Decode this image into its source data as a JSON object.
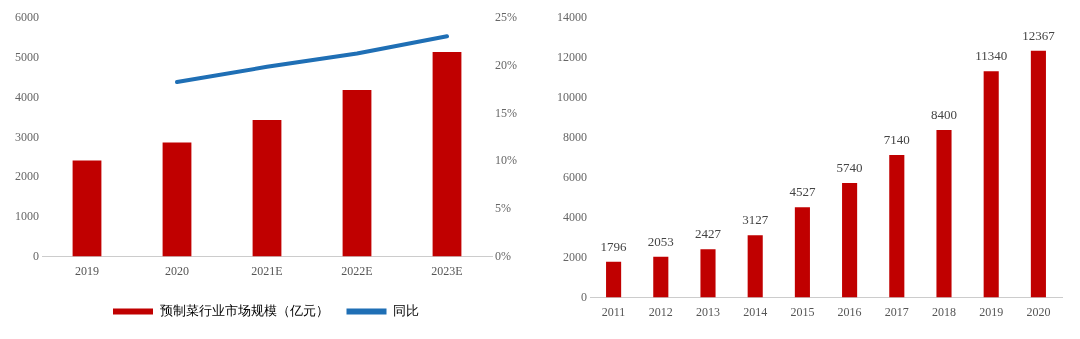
{
  "chart_data": [
    {
      "type": "bar",
      "categories": [
        "2019",
        "2020",
        "2021E",
        "2022E",
        "2023E"
      ],
      "series": [
        {
          "name": "预制菜行业市场规模（亿元）",
          "color": "#c00000",
          "values": [
            2420,
            2870,
            3440,
            4190,
            5150
          ]
        },
        {
          "name": "同比",
          "type": "line",
          "axis": "y2",
          "color": "#1f6fb5",
          "values": [
            null,
            18.3,
            19.9,
            21.3,
            23.1
          ]
        }
      ],
      "ylim": [
        0,
        6000
      ],
      "yticks": [
        0,
        1000,
        2000,
        3000,
        4000,
        5000,
        6000
      ],
      "y2lim": [
        0,
        25
      ],
      "y2ticks": [
        {
          "value": 0,
          "label": "0%"
        },
        {
          "value": 5,
          "label": "5%"
        },
        {
          "value": 10,
          "label": "10%"
        },
        {
          "value": 15,
          "label": "15%"
        },
        {
          "value": 20,
          "label": "20%"
        },
        {
          "value": 25,
          "label": "25%"
        }
      ],
      "grid": false,
      "legend": "bottom"
    },
    {
      "type": "bar",
      "categories": [
        "2011",
        "2012",
        "2013",
        "2014",
        "2015",
        "2016",
        "2017",
        "2018",
        "2019",
        "2020"
      ],
      "series": [
        {
          "color": "#c00000",
          "values": [
            1796,
            2053,
            2427,
            3127,
            4527,
            5740,
            7140,
            8400,
            11340,
            12367
          ]
        }
      ],
      "ylim": [
        0,
        14000
      ],
      "yticks": [
        0,
        2000,
        4000,
        6000,
        8000,
        10000,
        12000,
        14000
      ],
      "grid": false,
      "legend": false,
      "data_labels": true
    }
  ]
}
